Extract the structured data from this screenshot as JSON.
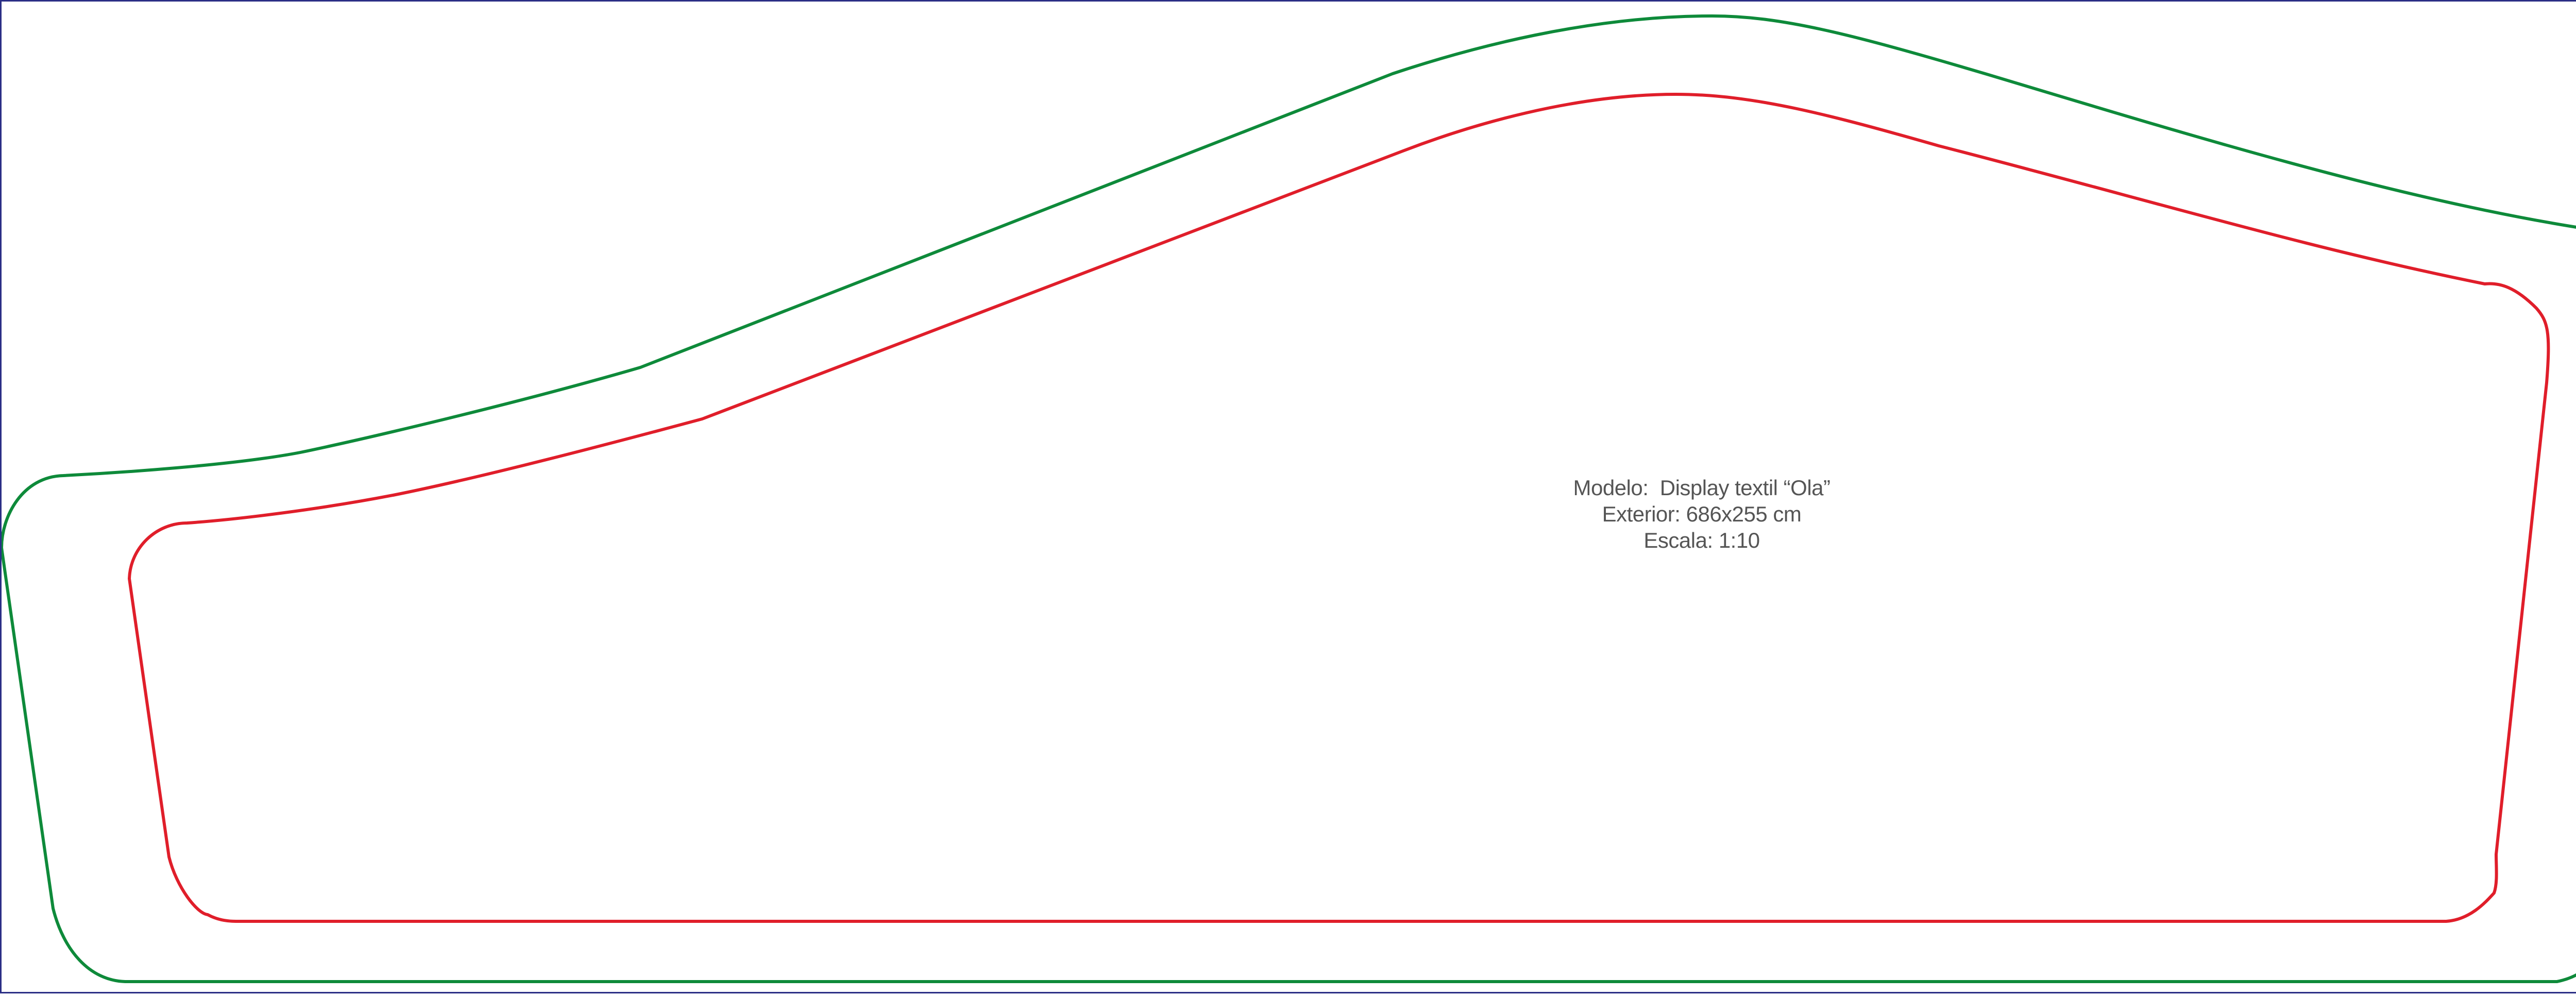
{
  "drawing": {
    "outer_outline_color": "#0e8a3a",
    "inner_outline_color": "#e01e2a",
    "frame_color": "#2b2f86"
  },
  "label": {
    "model": "Modelo:  Display textil “Ola”",
    "exterior": "Exterior: 686x255 cm",
    "scale": "Escala: 1:10"
  }
}
